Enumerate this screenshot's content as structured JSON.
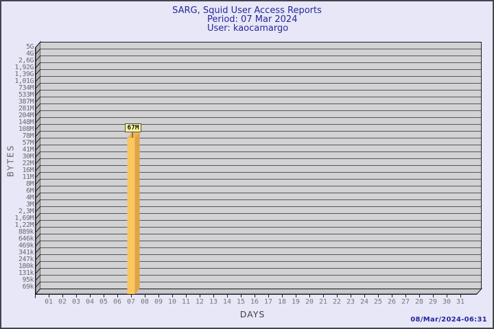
{
  "window": {
    "background": "#e7e7f7",
    "border_color": "#43434d"
  },
  "header": {
    "title": "SARG, Squid User Access Reports",
    "period_label": "Period: 07 Mar 2024",
    "user_label": "User: kaocamargo"
  },
  "footer": {
    "timestamp": "08/Mar/2024-06:31"
  },
  "chart_data": {
    "type": "bar",
    "title": "SARG, Squid User Access Reports",
    "subtitle": [
      "Period: 07 Mar 2024",
      "User: kaocamargo"
    ],
    "xlabel": "DAYS",
    "ylabel": "BYTES",
    "y_scale": "log",
    "x_categories": [
      "01",
      "02",
      "03",
      "04",
      "05",
      "06",
      "07",
      "08",
      "09",
      "10",
      "11",
      "12",
      "13",
      "14",
      "15",
      "16",
      "17",
      "18",
      "19",
      "20",
      "21",
      "22",
      "23",
      "24",
      "25",
      "26",
      "27",
      "28",
      "29",
      "30",
      "31"
    ],
    "y_tick_labels": [
      "5G",
      "4G",
      "2,6G",
      "1,92G",
      "1,39G",
      "1,01G",
      "734M",
      "533M",
      "387M",
      "281M",
      "204M",
      "148M",
      "108M",
      "78M",
      "57M",
      "41M",
      "30M",
      "22M",
      "16M",
      "11M",
      "8M",
      "6M",
      "4M",
      "3M",
      "2,3M",
      "1,69M",
      "1,22M",
      "889k",
      "646k",
      "469k",
      "341k",
      "247k",
      "180k",
      "131k",
      "95k",
      "69k"
    ],
    "values_bytes": [
      0,
      0,
      0,
      0,
      0,
      0,
      67000000,
      0,
      0,
      0,
      0,
      0,
      0,
      0,
      0,
      0,
      0,
      0,
      0,
      0,
      0,
      0,
      0,
      0,
      0,
      0,
      0,
      0,
      0,
      0,
      0
    ],
    "bars": [
      {
        "day": "07",
        "value_label": "67M",
        "value_bytes_approx": 67000000
      }
    ],
    "legend": "none",
    "grid": "horizontal",
    "colors": {
      "plot_face": "#d2d2d4",
      "wall": "#b2b2b6",
      "floor": "#c9c9cc",
      "gridline": "#55555a",
      "edge": "#1a1a1e",
      "diagonal_tick": "#2a2a2e",
      "bar_front": "#fcc661",
      "bar_side": "#dfa446",
      "bar_top": "#f0b351",
      "value_box_bg": "#ffffa8",
      "value_box_border": "#4c4c32",
      "title_color": "#26269b",
      "tick_label_color": "#6b6b70"
    }
  }
}
